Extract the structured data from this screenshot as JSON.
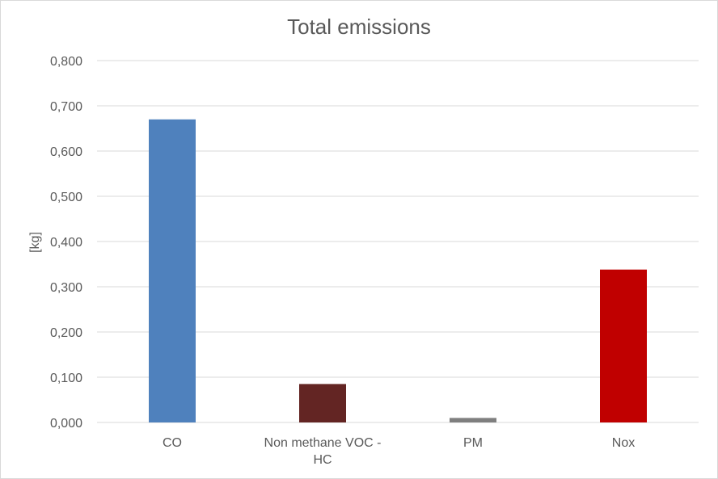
{
  "chart_data": {
    "type": "bar",
    "title": "Total emissions",
    "xlabel": "",
    "ylabel": "[kg]",
    "categories": [
      [
        "CO"
      ],
      [
        "Non methane VOC -",
        "HC"
      ],
      [
        "PM"
      ],
      [
        "Nox"
      ]
    ],
    "values": [
      0.67,
      0.085,
      0.01,
      0.338
    ],
    "colors": [
      "#4f81bd",
      "#632523",
      "#7f7f7f",
      "#c00000"
    ],
    "ylim": [
      0,
      0.8
    ],
    "yticks": [
      "0,000",
      "0,100",
      "0,200",
      "0,300",
      "0,400",
      "0,500",
      "0,600",
      "0,700",
      "0,800"
    ],
    "grid": true,
    "legend": "none"
  }
}
